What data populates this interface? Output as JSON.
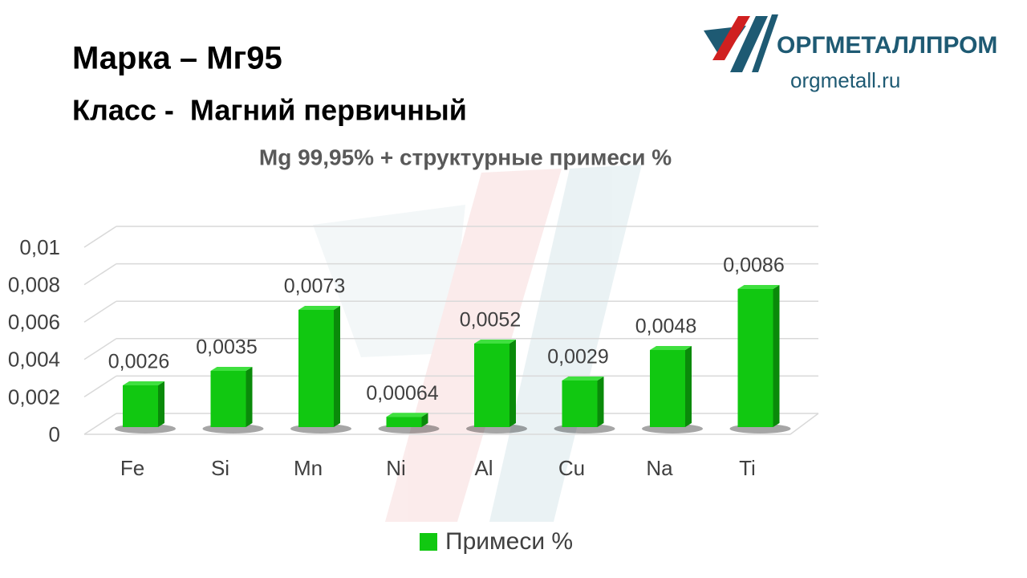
{
  "slide": {
    "title": "Марка – Мг95",
    "subtitle": "Класс -  Магний первичный"
  },
  "logo": {
    "name": "ОРГМЕТАЛЛПРОМ",
    "url": "orgmetall.ru"
  },
  "chart_data": {
    "type": "bar",
    "title": "Mg 99,95% + структурные примеси %",
    "categories": [
      "Fe",
      "Si",
      "Mn",
      "Ni",
      "Al",
      "Cu",
      "Na",
      "Ti"
    ],
    "series": [
      {
        "name": "Примеси %",
        "color": "#11c811",
        "values": [
          0.0026,
          0.0035,
          0.0073,
          0.00064,
          0.0052,
          0.0029,
          0.0048,
          0.0086
        ],
        "value_labels": [
          "0,0026",
          "0,0035",
          "0,0073",
          "0,00064",
          "0,0052",
          "0,0029",
          "0,0048",
          "0,0086"
        ]
      }
    ],
    "ylim": [
      0,
      0.01
    ],
    "yticks": [
      0,
      {
        "value": 0.002,
        "label": "0,002"
      },
      {
        "value": 0.004,
        "label": "0,004"
      },
      {
        "value": 0.006,
        "label": "0,006"
      },
      {
        "value": 0.008,
        "label": "0,008"
      },
      {
        "value": 0.01,
        "label": "0,01"
      }
    ],
    "grid": true,
    "legend": "bottom"
  }
}
